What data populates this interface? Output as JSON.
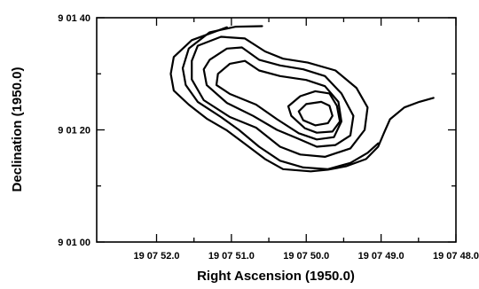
{
  "chart_data": {
    "type": "contour",
    "xlabel": "Right Ascension (1950.0)",
    "ylabel": "Declination (1950.0)",
    "xlim_seconds": [
      52.8,
      48.0
    ],
    "ylim_arcsec": [
      60,
      100
    ],
    "x_ticks": [
      {
        "value": 52.0,
        "label": "19 07 52.0"
      },
      {
        "value": 51.0,
        "label": "19 07 51.0"
      },
      {
        "value": 50.0,
        "label": "19 07 50.0"
      },
      {
        "value": 49.0,
        "label": "19 07 49.0"
      },
      {
        "value": 48.0,
        "label": "19 07 48.0"
      }
    ],
    "x_minor_ticks": [
      51.5,
      50.5,
      49.5,
      48.5
    ],
    "y_ticks": [
      {
        "value": 60,
        "label": "9 01 00"
      },
      {
        "value": 80,
        "label": "9 01 20"
      },
      {
        "value": 100,
        "label": "9 01 40"
      }
    ],
    "y_minor_ticks": [
      70,
      90
    ],
    "contours": [
      {
        "closed": false,
        "points": [
          [
            51.06,
            98.3
          ],
          [
            51.53,
            96.0
          ],
          [
            51.77,
            93.0
          ],
          [
            51.81,
            90.0
          ],
          [
            51.77,
            87.0
          ],
          [
            51.57,
            84.5
          ],
          [
            51.33,
            82.0
          ],
          [
            51.06,
            79.9
          ],
          [
            50.82,
            77.5
          ],
          [
            50.55,
            74.8
          ],
          [
            50.31,
            73.0
          ],
          [
            49.94,
            72.6
          ],
          [
            49.71,
            72.9
          ],
          [
            49.47,
            73.5
          ],
          [
            49.2,
            74.8
          ],
          [
            49.04,
            77.0
          ],
          [
            48.96,
            79.5
          ],
          [
            48.88,
            81.9
          ],
          [
            48.69,
            84.0
          ],
          [
            48.49,
            85.0
          ],
          [
            48.3,
            85.7
          ]
        ]
      },
      {
        "closed": false,
        "points": [
          [
            50.59,
            98.5
          ],
          [
            50.94,
            98.4
          ],
          [
            51.29,
            97.4
          ],
          [
            51.57,
            94.5
          ],
          [
            51.65,
            91.0
          ],
          [
            51.61,
            88.0
          ],
          [
            51.45,
            85.0
          ],
          [
            51.14,
            82.3
          ],
          [
            50.9,
            80.0
          ],
          [
            50.63,
            77.0
          ],
          [
            50.35,
            74.5
          ],
          [
            50.04,
            73.3
          ],
          [
            49.71,
            73.0
          ],
          [
            49.41,
            74.1
          ],
          [
            49.18,
            75.9
          ],
          [
            49.04,
            77.6
          ]
        ]
      },
      {
        "closed": true,
        "points": [
          [
            51.45,
            95.0
          ],
          [
            51.14,
            96.6
          ],
          [
            50.82,
            96.3
          ],
          [
            50.55,
            94.0
          ],
          [
            50.31,
            92.7
          ],
          [
            49.98,
            92.0
          ],
          [
            49.61,
            90.6
          ],
          [
            49.33,
            87.5
          ],
          [
            49.18,
            84.0
          ],
          [
            49.22,
            80.0
          ],
          [
            49.41,
            76.7
          ],
          [
            49.75,
            75.2
          ],
          [
            50.08,
            75.6
          ],
          [
            50.35,
            77.0
          ],
          [
            50.67,
            80.4
          ],
          [
            51.02,
            82.3
          ],
          [
            51.37,
            85.3
          ],
          [
            51.53,
            89.0
          ],
          [
            51.53,
            92.3
          ]
        ]
      },
      {
        "closed": true,
        "points": [
          [
            51.29,
            92.5
          ],
          [
            51.06,
            94.5
          ],
          [
            50.86,
            94.7
          ],
          [
            50.63,
            92.5
          ],
          [
            50.35,
            91.5
          ],
          [
            50.04,
            90.8
          ],
          [
            49.75,
            89.6
          ],
          [
            49.53,
            86.5
          ],
          [
            49.37,
            82.5
          ],
          [
            49.41,
            79.0
          ],
          [
            49.61,
            77.3
          ],
          [
            49.86,
            77.0
          ],
          [
            50.12,
            78.5
          ],
          [
            50.39,
            80.0
          ],
          [
            50.71,
            82.5
          ],
          [
            51.06,
            84.8
          ],
          [
            51.33,
            88.0
          ],
          [
            51.37,
            90.8
          ]
        ]
      },
      {
        "closed": true,
        "points": [
          [
            51.18,
            90.0
          ],
          [
            51.02,
            91.8
          ],
          [
            50.82,
            92.3
          ],
          [
            50.63,
            90.6
          ],
          [
            50.35,
            89.6
          ],
          [
            50.0,
            88.9
          ],
          [
            49.75,
            87.8
          ],
          [
            49.57,
            85.0
          ],
          [
            49.53,
            81.5
          ],
          [
            49.63,
            78.7
          ],
          [
            49.86,
            78.3
          ],
          [
            50.1,
            79.4
          ],
          [
            50.39,
            81.9
          ],
          [
            50.67,
            84.5
          ],
          [
            51.02,
            86.4
          ],
          [
            51.2,
            88.0
          ]
        ]
      },
      {
        "closed": true,
        "points": [
          [
            50.08,
            86.0
          ],
          [
            49.88,
            86.9
          ],
          [
            49.69,
            86.5
          ],
          [
            49.59,
            84.3
          ],
          [
            49.55,
            81.5
          ],
          [
            49.65,
            79.7
          ],
          [
            49.86,
            79.5
          ],
          [
            50.02,
            80.3
          ],
          [
            50.2,
            82.5
          ],
          [
            50.24,
            84.2
          ]
        ]
      },
      {
        "closed": true,
        "points": [
          [
            50.0,
            84.6
          ],
          [
            49.8,
            85.0
          ],
          [
            49.69,
            84.3
          ],
          [
            49.65,
            82.5
          ],
          [
            49.71,
            81.2
          ],
          [
            49.88,
            80.8
          ],
          [
            50.04,
            81.7
          ],
          [
            50.1,
            83.3
          ]
        ]
      }
    ]
  }
}
